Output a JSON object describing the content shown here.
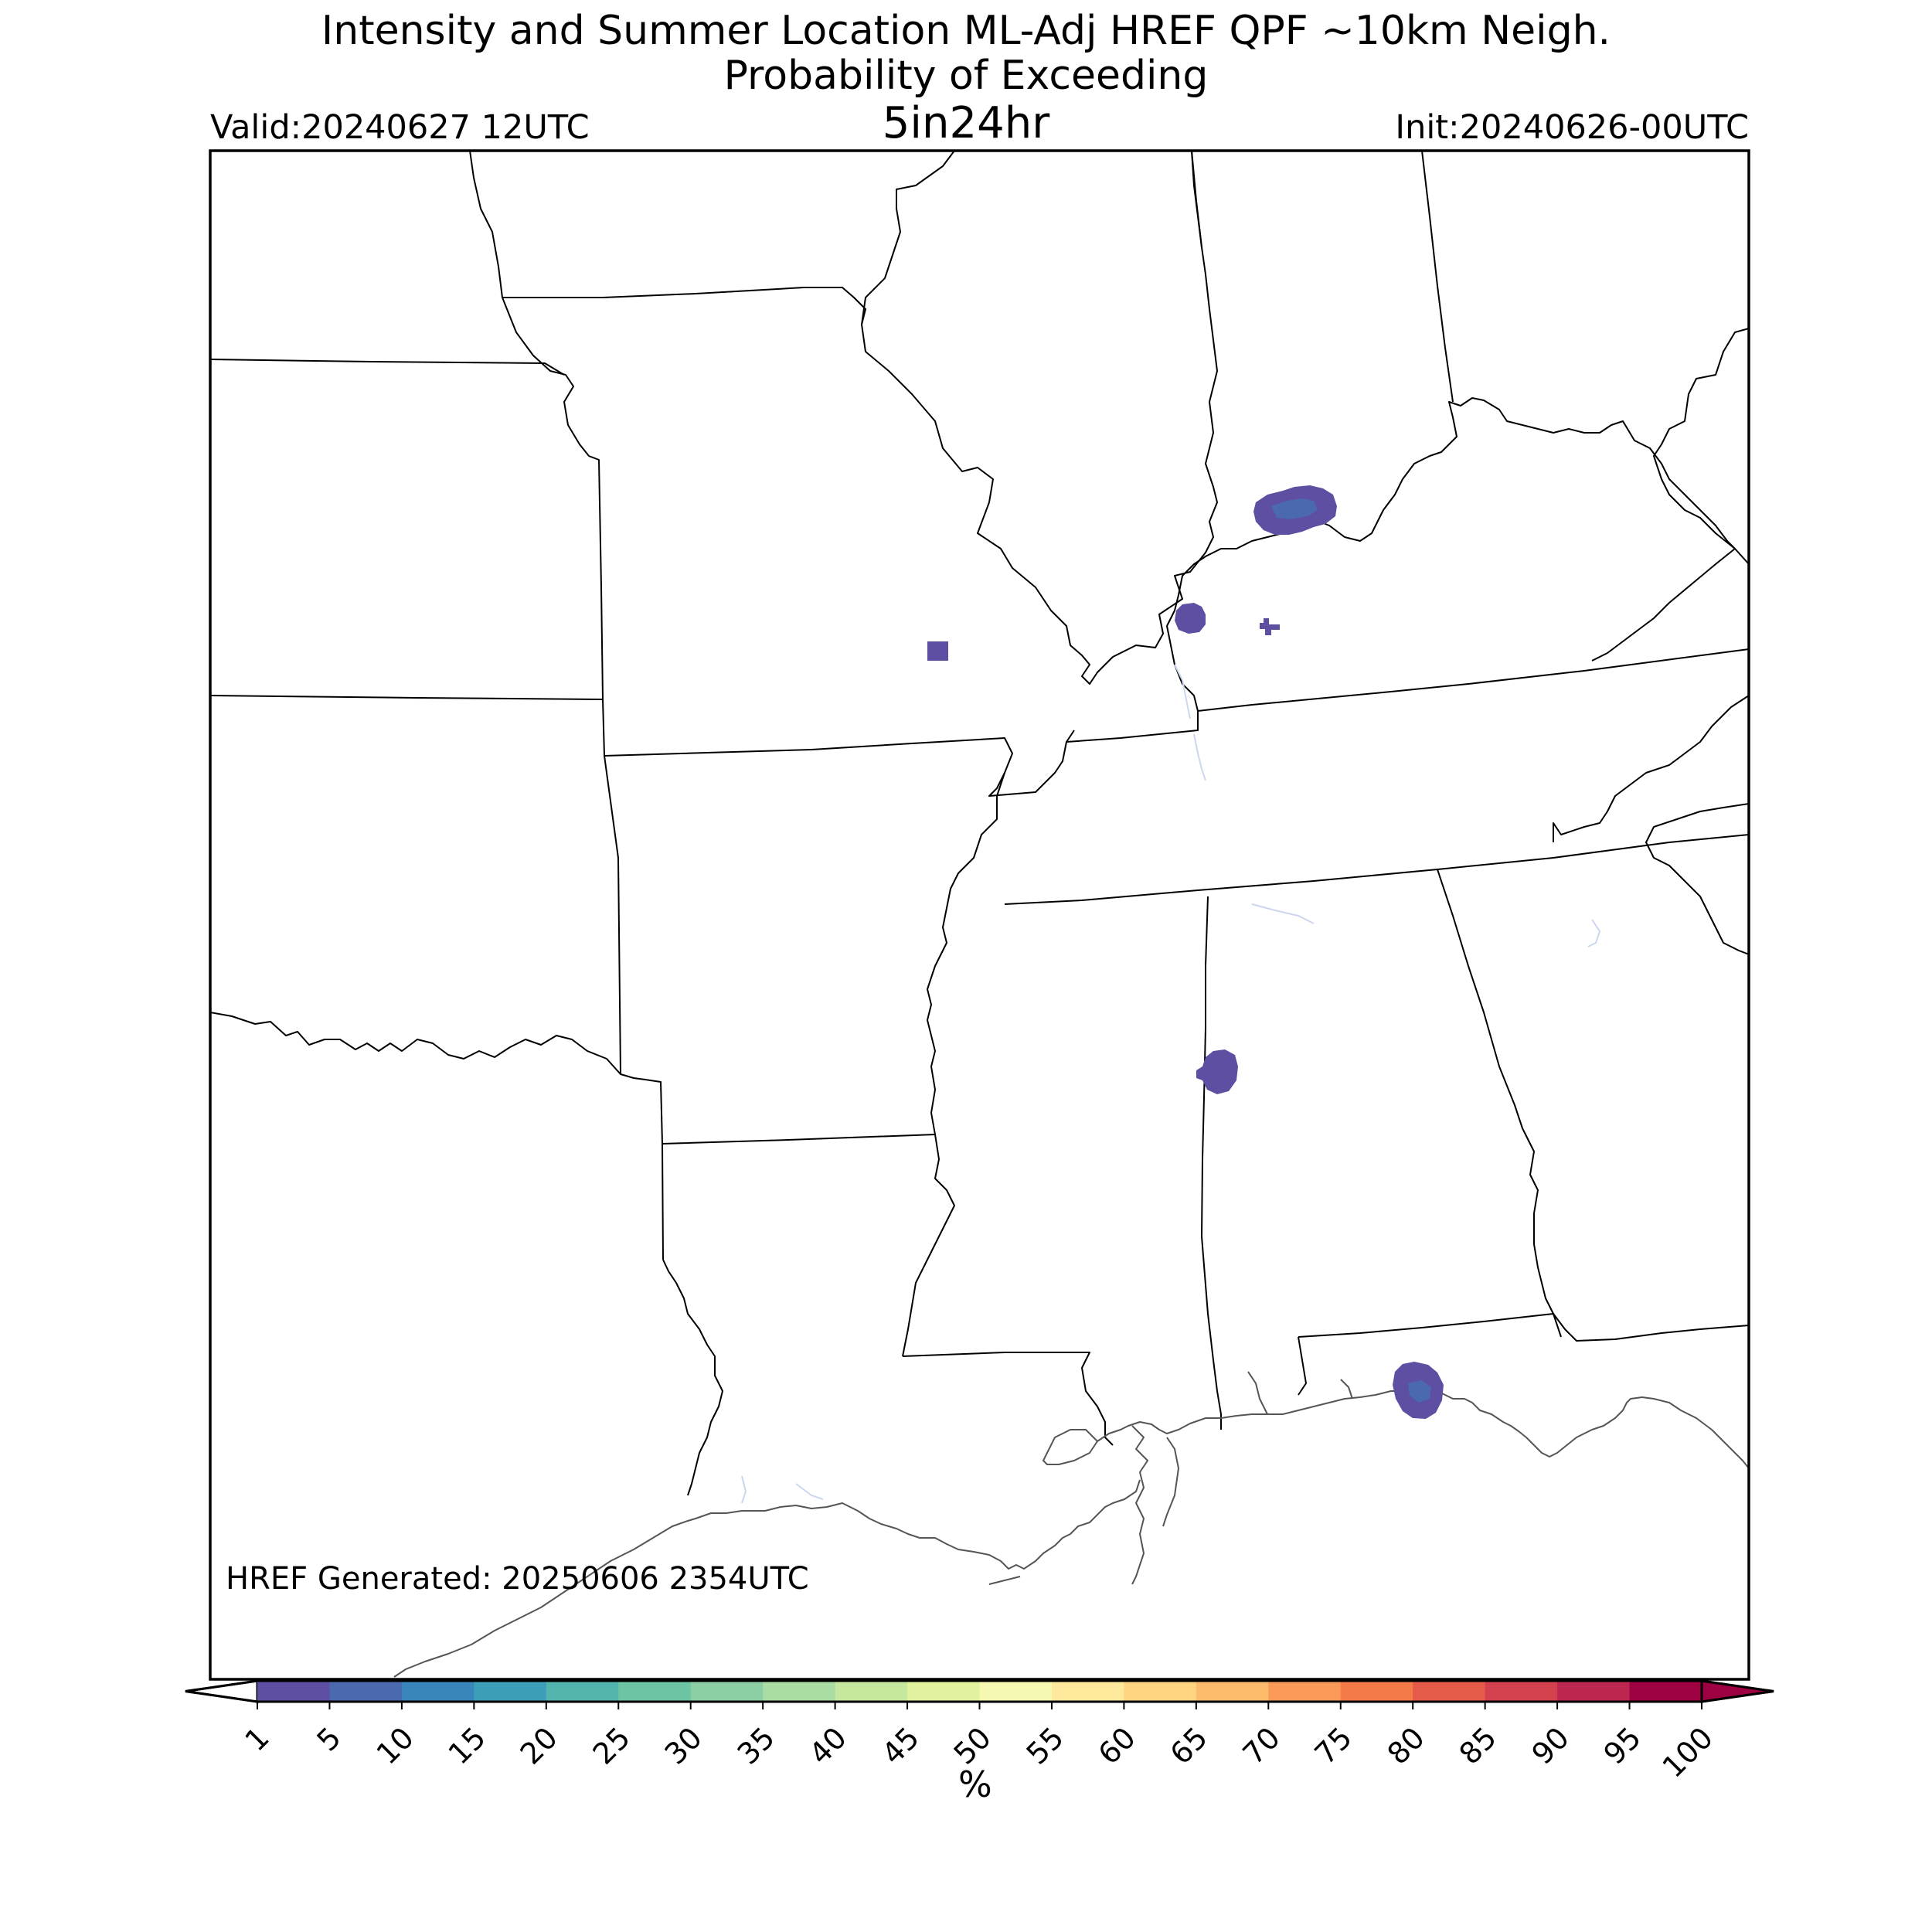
{
  "title": {
    "line1": "Intensity and Summer Location ML-Adj HREF QPF ~10km Neigh.",
    "line2": "Probability of Exceeding",
    "threshold": "5in24hr"
  },
  "valid": "Valid:20240627 12UTC",
  "init": "Init:20240626-00UTC",
  "generated": "HREF Generated: 20250606 2354UTC",
  "colorbar": {
    "ticks": [
      "1",
      "5",
      "10",
      "15",
      "20",
      "25",
      "30",
      "35",
      "40",
      "45",
      "50",
      "55",
      "60",
      "65",
      "70",
      "75",
      "80",
      "85",
      "90",
      "95",
      "100"
    ],
    "colors": [
      "#5e4fa2",
      "#4a69ae",
      "#3a85b9",
      "#3d9eb8",
      "#53b3ad",
      "#6cc4a4",
      "#8ccfa4",
      "#aadca4",
      "#c6e79e",
      "#e0f29d",
      "#f5f8b1",
      "#fee89c",
      "#fed481",
      "#fdbb6c",
      "#fa9a58",
      "#f47a4a",
      "#e45c49",
      "#d3414e",
      "#bc2750",
      "#9e0142"
    ],
    "under_color": "#ffffff",
    "over_color": "#9e0142",
    "unit": "%"
  },
  "probability_areas": [
    {
      "region": "southern Indiana",
      "category": "1-5",
      "color": "#5e4fa2"
    },
    {
      "region": "southern Indiana core",
      "category": "5-10",
      "color": "#4a69ae"
    },
    {
      "region": "western Kentucky",
      "category": "1-5",
      "color": "#5e4fa2"
    },
    {
      "region": "western Kentucky small",
      "category": "1-5",
      "color": "#5e4fa2"
    },
    {
      "region": "central Missouri",
      "category": "1-5",
      "color": "#5e4fa2"
    },
    {
      "region": "central Mississippi",
      "category": "1-5",
      "color": "#5e4fa2"
    },
    {
      "region": "Florida panhandle coast",
      "category": "1-5",
      "color": "#5e4fa2"
    },
    {
      "region": "Florida panhandle core",
      "category": "5-10",
      "color": "#4a69ae"
    }
  ]
}
